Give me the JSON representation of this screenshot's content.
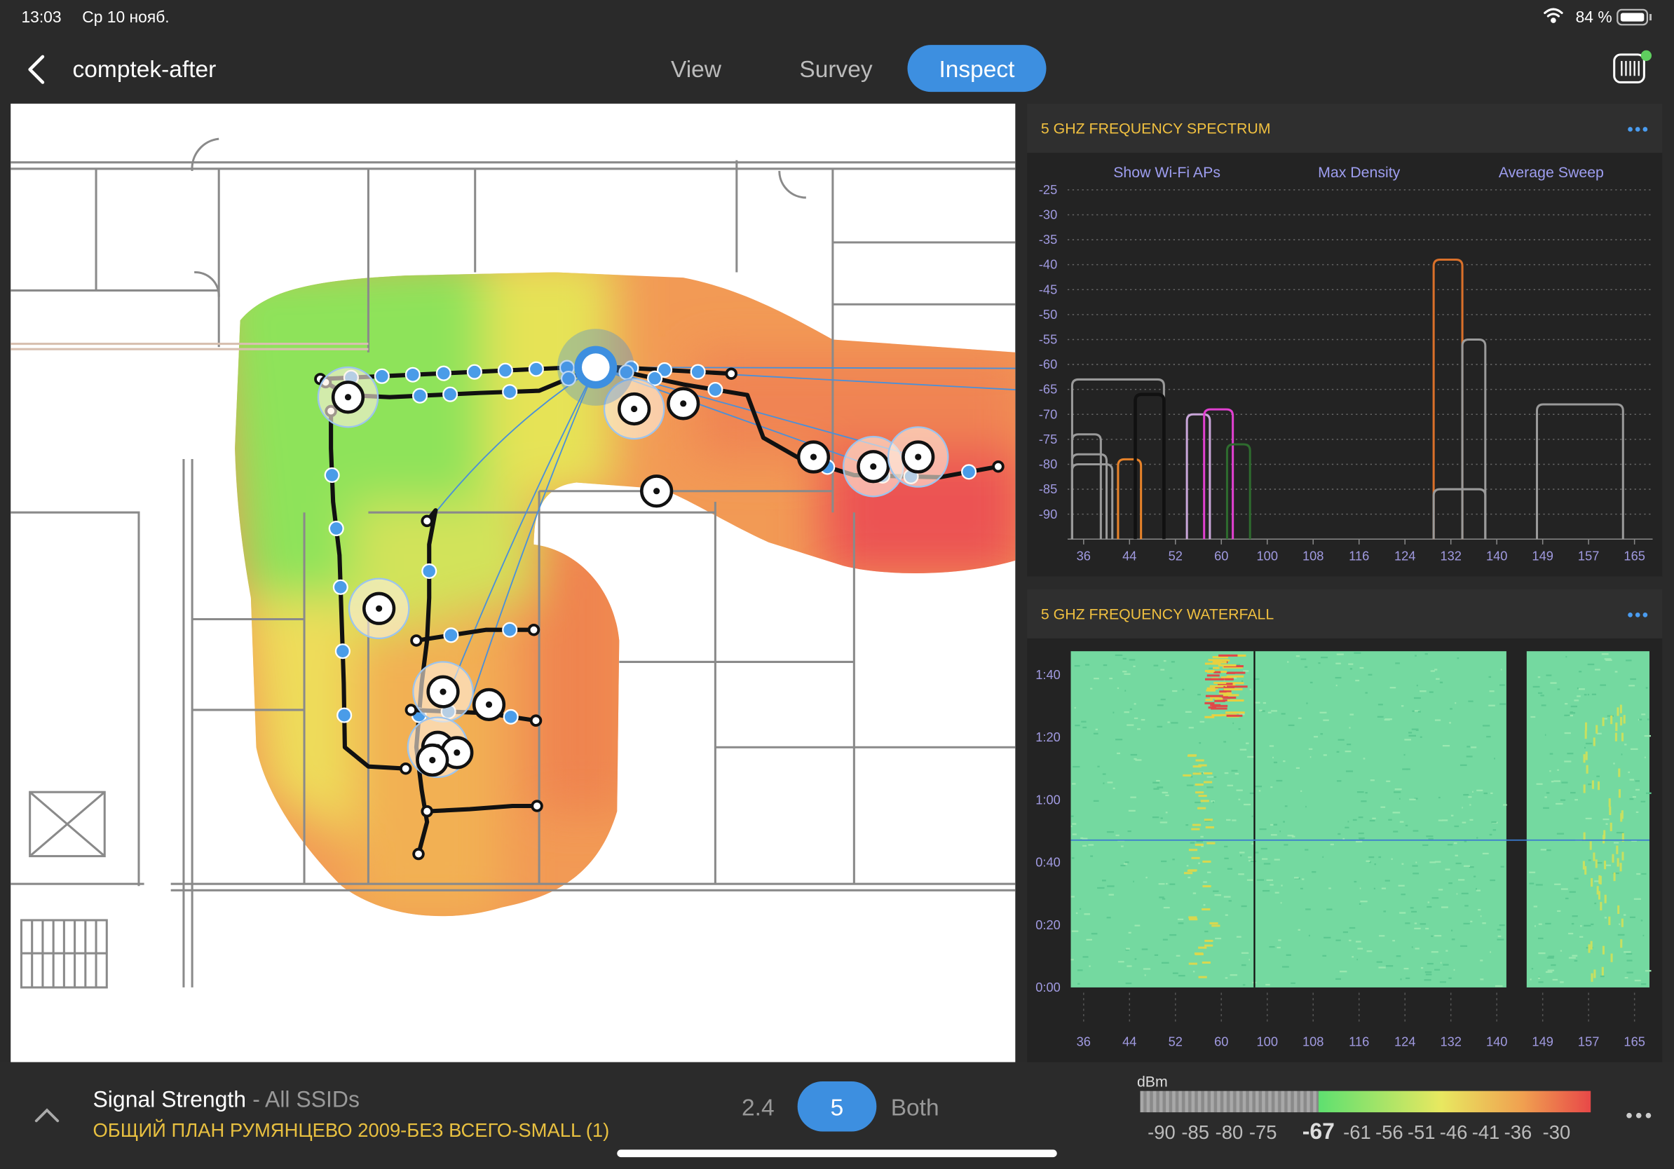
{
  "status": {
    "time": "13:03",
    "date": "Ср 10 нояб.",
    "battery": "84 %"
  },
  "nav": {
    "title": "comptek-after",
    "tabs": [
      "View",
      "Survey",
      "Inspect"
    ],
    "active": 2
  },
  "chart_data": [
    {
      "type": "line",
      "title": "5 GHZ FREQUENCY SPECTRUM",
      "controls": [
        "Show Wi-Fi APs",
        "Max Density",
        "Average Sweep"
      ],
      "xticks": [
        36,
        44,
        52,
        60,
        100,
        108,
        116,
        124,
        132,
        140,
        149,
        157,
        165
      ],
      "ylim": [
        -95,
        -18
      ],
      "yticks": [
        -25,
        -30,
        -35,
        -40,
        -45,
        -50,
        -55,
        -60,
        -65,
        -70,
        -75,
        -80,
        -85,
        -90
      ],
      "grid": true,
      "series": [
        {
          "color": "#9a9a9a",
          "channels": [
            34,
            50
          ],
          "level": -63
        },
        {
          "color": "#9a9a9a",
          "channels": [
            34,
            39
          ],
          "level": -74
        },
        {
          "color": "#9a9a9a",
          "channels": [
            34,
            40
          ],
          "level": -78
        },
        {
          "color": "#9a9a9a",
          "channels": [
            34,
            41
          ],
          "level": -80
        },
        {
          "color": "#e8832a",
          "channels": [
            42,
            46
          ],
          "level": -79
        },
        {
          "color": "#111111",
          "channels": [
            45,
            50
          ],
          "level": -66
        },
        {
          "color": "#c9a6d9",
          "channels": [
            54,
            58
          ],
          "level": -70
        },
        {
          "color": "#e040d0",
          "channels": [
            57,
            62
          ],
          "level": -69
        },
        {
          "color": "#2e6b2e",
          "channels": [
            61,
            65
          ],
          "level": -76
        },
        {
          "color": "#d9702a",
          "channels": [
            129,
            134
          ],
          "level": -39
        },
        {
          "color": "#9a9a9a",
          "channels": [
            134,
            138
          ],
          "level": -55
        },
        {
          "color": "#9a9a9a",
          "channels": [
            129,
            138
          ],
          "level": -85
        },
        {
          "color": "#9a9a9a",
          "channels": [
            147,
            163
          ],
          "level": -68
        }
      ]
    },
    {
      "type": "heatmap",
      "title": "5 GHZ FREQUENCY WATERFALL",
      "yticks": [
        "1:40",
        "1:20",
        "1:00",
        "0:40",
        "0:20",
        "0:00"
      ],
      "xticks": [
        36,
        44,
        52,
        60,
        100,
        108,
        116,
        124,
        132,
        140,
        149,
        157,
        165
      ]
    }
  ],
  "bottom": {
    "metric": "Signal Strength",
    "scope": "- All SSIDs",
    "plan": "ОБЩИЙ ПЛАН РУМЯНЦЕВО 2009-БЕЗ ВСЕГО-SMALL (1)",
    "bands": [
      "2.4",
      "5",
      "Both"
    ],
    "active_band": 1,
    "legend": {
      "unit": "dBm",
      "gray_ticks": [
        -90,
        -85,
        -80,
        -75
      ],
      "color_ticks": [
        -67,
        -61,
        -56,
        -51,
        -46,
        -41,
        -36,
        -30
      ]
    }
  }
}
